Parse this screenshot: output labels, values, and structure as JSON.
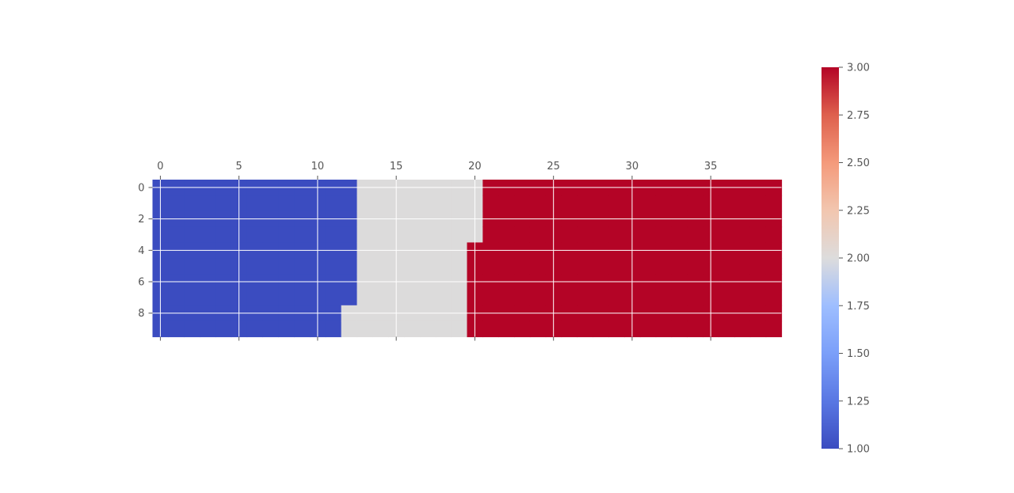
{
  "chart_data": {
    "type": "heatmap",
    "title": "",
    "xlabel": "",
    "ylabel": "",
    "grid": true,
    "n_cols": 40,
    "n_rows": 10,
    "cell_order": "column-major (top to bottom, then left to right)",
    "value_counts": [
      {
        "value": 1,
        "count": 128
      },
      {
        "value": 2,
        "count": 76
      },
      {
        "value": 3,
        "count": 196
      }
    ],
    "x_ticks": [
      0,
      5,
      10,
      15,
      20,
      25,
      30,
      35
    ],
    "y_ticks": [
      0,
      2,
      4,
      6,
      8
    ],
    "colormap": "coolwarm",
    "category_colors": {
      "1": "#3b4cc0",
      "2": "#dcdbdb",
      "3": "#b40426"
    },
    "colorbar": {
      "range": [
        1.0,
        3.0
      ],
      "ticks": [
        "1.00",
        "1.25",
        "1.50",
        "1.75",
        "2.00",
        "2.25",
        "2.50",
        "2.75",
        "3.00"
      ]
    }
  }
}
